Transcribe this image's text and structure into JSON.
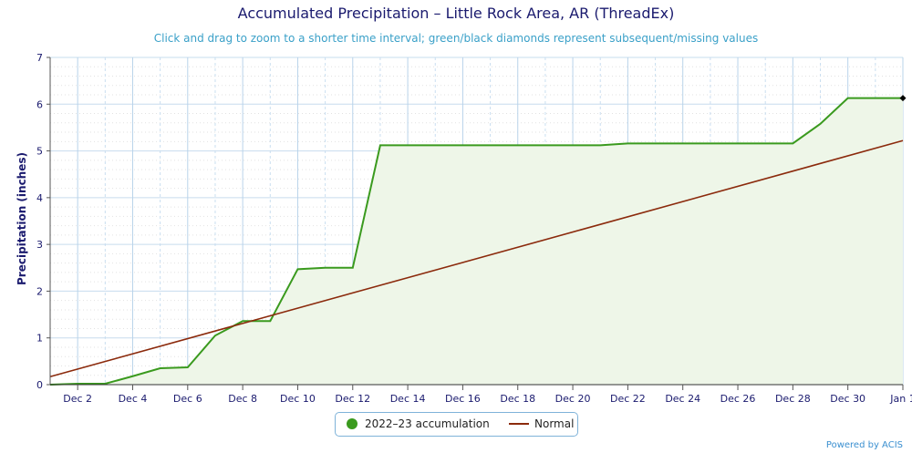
{
  "chart_data": {
    "type": "line",
    "title": "Accumulated Precipitation – Little Rock Area, AR (ThreadEx)",
    "subtitle": "Click and drag to zoom to a shorter time interval; green/black diamonds represent subsequent/missing values",
    "xlabel": "",
    "ylabel": "Precipitation (inches)",
    "ylim": [
      0,
      7
    ],
    "xlim": [
      1,
      32
    ],
    "yticks": [
      0,
      1,
      2,
      3,
      4,
      5,
      6,
      7
    ],
    "xticks": [
      {
        "x": 2,
        "label": "Dec 2"
      },
      {
        "x": 4,
        "label": "Dec 4"
      },
      {
        "x": 6,
        "label": "Dec 6"
      },
      {
        "x": 8,
        "label": "Dec 8"
      },
      {
        "x": 10,
        "label": "Dec 10"
      },
      {
        "x": 12,
        "label": "Dec 12"
      },
      {
        "x": 14,
        "label": "Dec 14"
      },
      {
        "x": 16,
        "label": "Dec 16"
      },
      {
        "x": 18,
        "label": "Dec 18"
      },
      {
        "x": 20,
        "label": "Dec 20"
      },
      {
        "x": 22,
        "label": "Dec 22"
      },
      {
        "x": 24,
        "label": "Dec 24"
      },
      {
        "x": 26,
        "label": "Dec 26"
      },
      {
        "x": 28,
        "label": "Dec 28"
      },
      {
        "x": 30,
        "label": "Dec 30"
      },
      {
        "x": 32,
        "label": "Jan 1"
      }
    ],
    "grid": true,
    "legend_position": "bottom-center",
    "series": [
      {
        "name": "2022–23 accumulation",
        "color": "#3a9a1e",
        "fill": "#eef6e8",
        "x": [
          1,
          2,
          3,
          4,
          5,
          6,
          7,
          8,
          9,
          10,
          11,
          12,
          13,
          14,
          15,
          16,
          17,
          18,
          19,
          20,
          21,
          22,
          23,
          24,
          25,
          26,
          27,
          28,
          29,
          30,
          31,
          32
        ],
        "values": [
          0.0,
          0.02,
          0.02,
          0.18,
          0.35,
          0.37,
          1.05,
          1.36,
          1.36,
          2.47,
          2.5,
          2.5,
          5.12,
          5.12,
          5.12,
          5.12,
          5.12,
          5.12,
          5.12,
          5.12,
          5.12,
          5.16,
          5.16,
          5.16,
          5.16,
          5.16,
          5.16,
          5.16,
          5.58,
          6.13,
          6.13,
          6.13
        ]
      },
      {
        "name": "Normal",
        "color": "#8b2a0c",
        "x": [
          1,
          32
        ],
        "values": [
          0.17,
          5.22
        ]
      }
    ],
    "markers": [
      {
        "type": "diamond",
        "color": "#000000",
        "x": 32,
        "y": 6.13
      }
    ],
    "credit": "Powered by ACIS"
  }
}
